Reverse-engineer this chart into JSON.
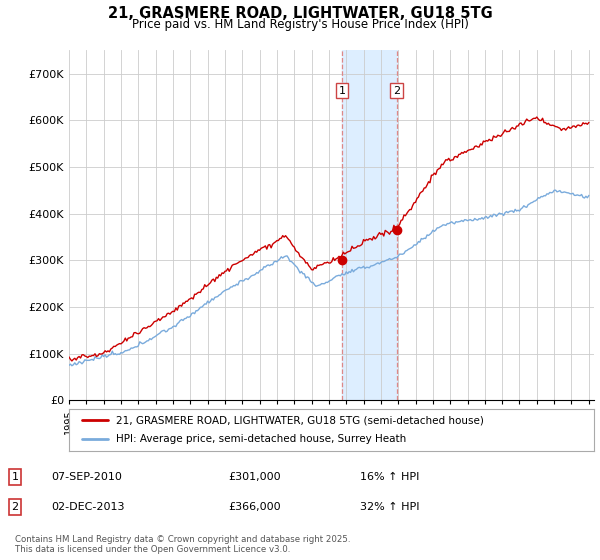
{
  "title_line1": "21, GRASMERE ROAD, LIGHTWATER, GU18 5TG",
  "title_line2": "Price paid vs. HM Land Registry's House Price Index (HPI)",
  "ylim": [
    0,
    750000
  ],
  "yticks": [
    0,
    100000,
    200000,
    300000,
    400000,
    500000,
    600000,
    700000
  ],
  "ytick_labels": [
    "£0",
    "£100K",
    "£200K",
    "£300K",
    "£400K",
    "£500K",
    "£600K",
    "£700K"
  ],
  "price_color": "#cc0000",
  "hpi_color": "#7aabdc",
  "vline_color": "#dd8888",
  "highlight_fill": "#ddeeff",
  "transaction_1_date": 2010.75,
  "transaction_1_price": 301000,
  "transaction_2_date": 2013.92,
  "transaction_2_price": 366000,
  "legend_label_price": "21, GRASMERE ROAD, LIGHTWATER, GU18 5TG (semi-detached house)",
  "legend_label_hpi": "HPI: Average price, semi-detached house, Surrey Heath",
  "note_1_date": "07-SEP-2010",
  "note_1_price": "£301,000",
  "note_1_hpi": "16% ↑ HPI",
  "note_2_date": "02-DEC-2013",
  "note_2_price": "£366,000",
  "note_2_hpi": "32% ↑ HPI",
  "footer": "Contains HM Land Registry data © Crown copyright and database right 2025.\nThis data is licensed under the Open Government Licence v3.0.",
  "background_color": "#ffffff",
  "grid_color": "#cccccc"
}
